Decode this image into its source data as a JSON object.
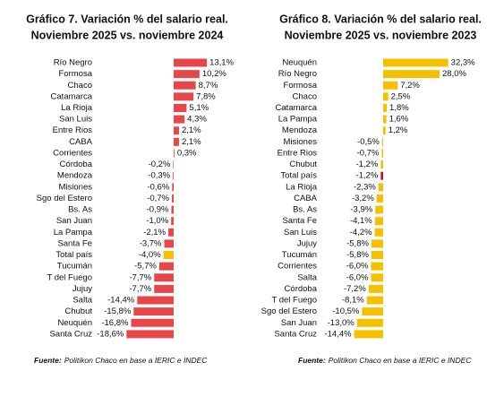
{
  "chart_data": [
    {
      "type": "bar",
      "orientation": "horizontal",
      "title": "Gráfico 7. Variación % del salario real.",
      "subtitle": "Noviembre 2025 vs. noviembre 2024",
      "categories": [
        "Río Negro",
        "Formosa",
        "Chaco",
        "Catamarca",
        "La Rioja",
        "San Luis",
        "Entre Rios",
        "CABA",
        "Corrientes",
        "Córdoba",
        "Mendoza",
        "Misiones",
        "Sgo del Estero",
        "Bs. As",
        "San Juan",
        "La Pampa",
        "Santa Fe",
        "Total país",
        "Tucumán",
        "T del Fuego",
        "Jujuy",
        "Salta",
        "Chubut",
        "Neuquén",
        "Santa Cruz"
      ],
      "values": [
        13.1,
        10.2,
        8.7,
        7.8,
        5.1,
        4.3,
        2.1,
        2.1,
        0.3,
        -0.2,
        -0.3,
        -0.6,
        -0.7,
        -0.9,
        -1.0,
        -2.1,
        -3.7,
        -4.0,
        -5.7,
        -7.7,
        -7.7,
        -14.4,
        -15.8,
        -16.8,
        -18.6
      ],
      "value_labels": [
        "13,1%",
        "10,2%",
        "8,7%",
        "7,8%",
        "5,1%",
        "4,3%",
        "2,1%",
        "2,1%",
        "0,3%",
        "-0,2%",
        "-0,3%",
        "-0,6%",
        "-0,7%",
        "-0,9%",
        "-1,0%",
        "-2,1%",
        "-3,7%",
        "-4,0%",
        "-5,7%",
        "-7,7%",
        "-7,7%",
        "-14,4%",
        "-15,8%",
        "-16,8%",
        "-18,6%"
      ],
      "color": "#e8474a",
      "highlight": "Total país",
      "highlight_color": "#f5c000",
      "source_label": "Fuente:",
      "source": "Politikon Chaco en base a IERIC e INDEC"
    },
    {
      "type": "bar",
      "orientation": "horizontal",
      "title": "Gráfico 8. Variación % del salario real.",
      "subtitle": "Noviembre 2025 vs. noviembre 2023",
      "categories": [
        "Neuquén",
        "Río Negro",
        "Formosa",
        "Chaco",
        "Catamarca",
        "La Pampa",
        "Mendoza",
        "Misiones",
        "Entre Rios",
        "Chubut",
        "Total país",
        "La Rioja",
        "CABA",
        "Bs. As",
        "Santa Fe",
        "San Luis",
        "Jujuy",
        "Tucumán",
        "Corrientes",
        "Salta",
        "Córdoba",
        "T del Fuego",
        "Sgo del Estero",
        "San Juan",
        "Santa Cruz"
      ],
      "values": [
        32.3,
        28.0,
        7.2,
        2.5,
        1.8,
        1.6,
        1.2,
        -0.5,
        -0.7,
        -1.2,
        -1.2,
        -2.3,
        -3.2,
        -3.9,
        -4.1,
        -4.2,
        -5.8,
        -5.8,
        -6.0,
        -6.0,
        -7.2,
        -8.1,
        -10.5,
        -13.0,
        -14.4
      ],
      "value_labels": [
        "32,3%",
        "28,0%",
        "7,2%",
        "2,5%",
        "1,8%",
        "1,6%",
        "1,2%",
        "-0,5%",
        "-0,7%",
        "-1,2%",
        "-1,2%",
        "-2,3%",
        "-3,2%",
        "-3,9%",
        "-4,1%",
        "-4,2%",
        "-5,8%",
        "-5,8%",
        "-6,0%",
        "-6,0%",
        "-7,2%",
        "-8,1%",
        "-10,5%",
        "-13,0%",
        "-14,4%"
      ],
      "color": "#f5c000",
      "highlight": "Total país",
      "highlight_color": "#d0102a",
      "source_label": "Fuente:",
      "source": "Politikon Chaco en base a IERIC e INDEC"
    }
  ]
}
